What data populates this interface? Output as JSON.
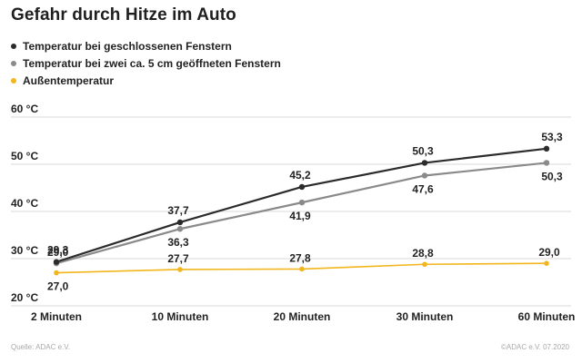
{
  "title": "Gefahr durch Hitze im Auto",
  "legend": [
    {
      "label": "Temperatur bei geschlossenen Fenstern",
      "color": "#2b2b2b"
    },
    {
      "label": "Temperatur bei zwei ca. 5 cm geöffneten Fenstern",
      "color": "#8a8a8a"
    },
    {
      "label": "Außentemperatur",
      "color": "#f2b61c"
    }
  ],
  "footer": {
    "source": "Quelle: ADAC e.V.",
    "copyright": "©ADAC e.V. 07.2020"
  },
  "chart_data": {
    "type": "line",
    "title": "Gefahr durch Hitze im Auto",
    "xlabel": "",
    "ylabel": "",
    "categories": [
      "2 Minuten",
      "10 Minuten",
      "20 Minuten",
      "30 Minuten",
      "60 Minuten"
    ],
    "yticks": [
      "20 °C",
      "30 °C",
      "40 °C",
      "50 °C",
      "60 °C"
    ],
    "ylim": [
      20,
      60
    ],
    "grid": true,
    "legend_position": "top-left",
    "series": [
      {
        "name": "Temperatur bei geschlossenen Fenstern",
        "color": "#2b2b2b",
        "values": [
          29.3,
          37.7,
          45.2,
          50.3,
          53.3
        ],
        "labels": [
          "29,3",
          "37,7",
          "45,2",
          "50,3",
          "53,3"
        ]
      },
      {
        "name": "Temperatur bei zwei ca. 5 cm geöffneten Fenstern",
        "color": "#8a8a8a",
        "values": [
          29.0,
          36.3,
          41.9,
          47.6,
          50.3
        ],
        "labels": [
          "29,0",
          "36,3",
          "41,9",
          "47,6",
          "50,3"
        ]
      },
      {
        "name": "Außentemperatur",
        "color": "#f2b61c",
        "values": [
          27.0,
          27.7,
          27.8,
          28.8,
          29.0
        ],
        "labels": [
          "27,0",
          "27,7",
          "27,8",
          "28,8",
          "29,0"
        ]
      }
    ]
  }
}
